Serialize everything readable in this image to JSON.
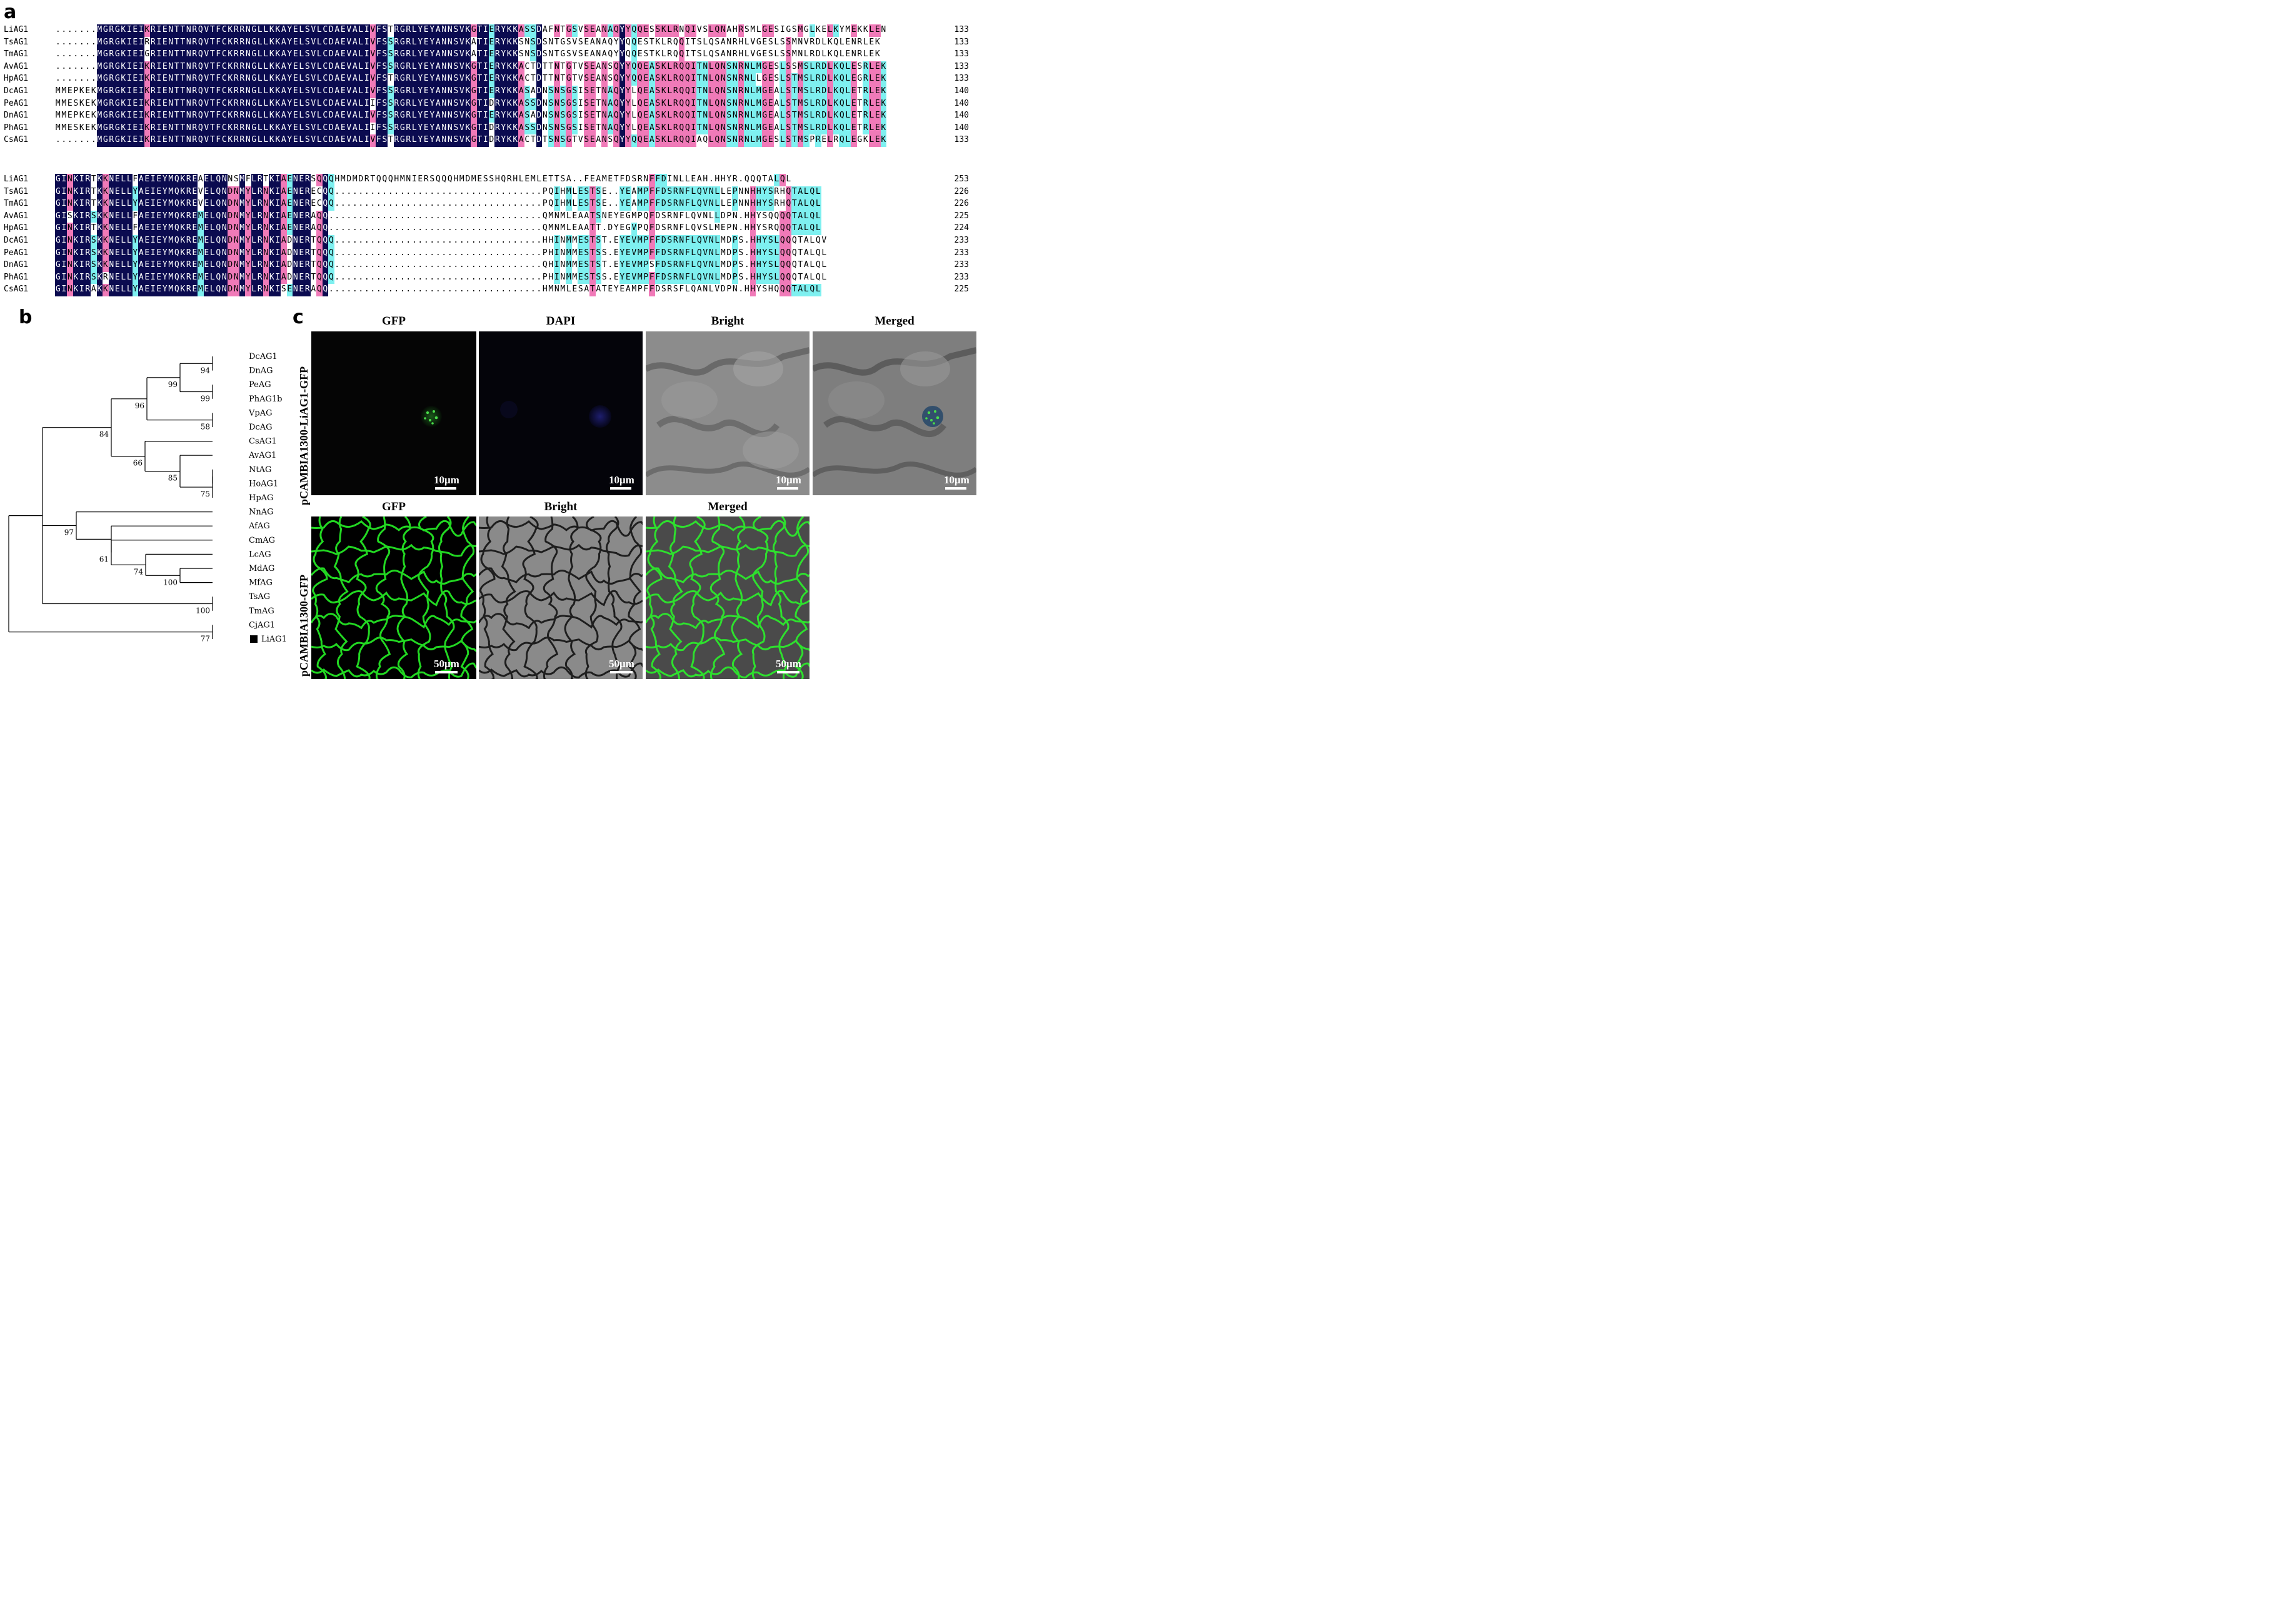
{
  "panels": {
    "a": "a",
    "b": "b",
    "c": "c"
  },
  "alignment": {
    "blocks": [
      {
        "rows": [
          {
            "name": "LiAG1",
            "seq": ".......MGRGKIEIKRIENTTNRQVTFCKRRNGLLKKAYELSVLCDAEVALIVFSTRGRLYEYANNSVKGTIERYKKASSDAFNTGSVSEANAQYYQQESSKLRNQIVSLQNAHRSMLGESIGSMGLKELKYMEKKLEN",
            "count": "133"
          },
          {
            "name": "TsAG1",
            "seq": ".......MGRGKIEIRRIENTTNRQVTFCKRRNGLLKKAYELSVLCDAEVALIVFSSRGRLYEYANNSVKATIERYKKSNSDSNTGSVSEANAQYYQQESTKLRQQITSLQSANRHLVGESLSSMNVRDLKQLENRLEK",
            "count": "133"
          },
          {
            "name": "TmAG1",
            "seq": ".......MGRGKIEIGRIENTTNRQVTFCKRRNGLLKKAYELSVLCDAEVALIVFSSRGRLYEYANNSVKATIERYKKSNSDSNTGSVSEANAQYYQQESTKLRQQITSLQSANRHLVGESLSSMNLRDLKQLENRLEK",
            "count": "133"
          },
          {
            "name": "AvAG1",
            "seq": ".......MGRGKIEIKRIENTTNRQVTFCKRRNGLLKKAYELSVLCDAEVALIVFSSRGRLYEYANNSVKGTIERYKKACTDTTNTGTVSEANSQYYQQEASKLRQQITNLQNSNRNLMGESLSSMSLRDLKQLESRLEK",
            "count": "133"
          },
          {
            "name": "HpAG1",
            "seq": ".......MGRGKIEIKRIENTTNRQVTFCKRRNGLLKKAYELSVLCDAEVALIVFSTRGRLYEYANNSVKGTIERYKKACTDTTNTGTVSEANSQYYQQEASKLRQQITNLQNSNRNLLGESLSTMSLRDLKQLEGRLEK",
            "count": "133"
          },
          {
            "name": "DcAG1",
            "seq": "MMEPKEKMGRGKIEIKRIENTTNRQVTFCKRRNGLLKKAYELSVLCDAEVALIVFSSRGRLYEYANNSVKGTIERYKKASADNSNSGSISETNAQYYLQEASKLRQQITNLQNSNRNLMGEALSTMSLRDLKQLETRLEK",
            "count": "140"
          },
          {
            "name": "PeAG1",
            "seq": "MMESKEKMGRGKIEIKRIENTTNRQVTFCKRRNGLLKKAYELSVLCDAEVALIIFSSRGRLYEYANNSVKGTIDRYKKASSDNSNSGSISETNAQYYLQEASKLRQQITNLQNSNRNLMGEALSTMSLRDLKQLETRLEK",
            "count": "140"
          },
          {
            "name": "DnAG1",
            "seq": "MMEPKEKMGRGKIEIKRIENTTNRQVTFCKRRNGLLKKAYELSVLCDAEVALIVFSSRGRLYEYANNSVKGTIERYKKASADNSNSGSISETNAQYYLQEASKLRQQITNLQNSNRNLMGEALSTMSLRDLKQLETRLEK",
            "count": "140"
          },
          {
            "name": "PhAG1",
            "seq": "MMESKEKMGRGKIEIKRIENTTNRQVTFCKRRNGLLKKAYELSVLCDAEVALIIFSSRGRLYEYANNSVKGTIDRYKKASSDNSNSGSISETNAQYYLQEASKLRQQITNLQNSNRNLMGEALSTMSLRDLKQLETRLEK",
            "count": "140"
          },
          {
            "name": "CsAG1",
            "seq": ".......MGRGKIEIKRIENTTNRQVTFCKRRNGLLKKAYELSVLCDAEVALIVFSTRGRLYEYANNSVKGTIDRYKKACTDTSNSGTVSEANSQYYQQEASKLRQQIAQLQNSNRNLMGESLSTMSPRELRQLEGKLEK",
            "count": "133"
          }
        ]
      },
      {
        "rows": [
          {
            "name": "LiAG1",
            "seq": "GINKIRTKKNELLFAEIEYMQKREAELQNNSMFLRTKIAENERSQQQHMDMDRTQQQHMNIERSQQQHMDMESSHQRHLEMLETTSA..FEAMETFDSRNFFDINLLEAH.HHYR.QQQTALQL",
            "count": "253"
          },
          {
            "name": "TsAG1",
            "seq": "GINKIRTKKNELLYAEIEYMQKREVELQNDNMYLRNKIAENERECQQ...................................PQIHMLESTSE..YEAMPFFDSRNFLQVNLLEPNNHHYSRHQTALQL",
            "count": "226"
          },
          {
            "name": "TmAG1",
            "seq": "GINKIRTKKNELLYAEIEYMQKREVELQNDNMYLRNKIAENERECQQ...................................PQIHMLESTSE..YEAMPFFDSRNFLQVNLLEPNNHHYSRHQTALQL",
            "count": "226"
          },
          {
            "name": "AvAG1",
            "seq": "GISKIRSKKNELLFAEIEYMQKREMELQNDNMYLRNKIAENERAQQ....................................QMNMLEAATSNEYEGMPQFDSRNFLQVNLLDPN.HHYSQQQQTALQL",
            "count": "225"
          },
          {
            "name": "HpAG1",
            "seq": "GINKIRTKKNELLFAEIEYMQKREMELQNDNMYLRNKIAENERAQQ....................................QMNMLEAATT.DYEGVPQFDSRNFLQVSLMEPN.HHYSRQQQTALQL",
            "count": "224"
          },
          {
            "name": "DcAG1",
            "seq": "GINKIRSKKNELLYAEIEYMQKREMELQNDNMYLRNKIADNERTQQQ...................................HHINMMESTST.EYEVMPFFDSRNFLQVNLMDPS.HHYSLQQQTALQV",
            "count": "233"
          },
          {
            "name": "PeAG1",
            "seq": "GINKIRSKKNELLYAEIEYMQKREMELQNDNMYLRNKIADNERTQQQ...................................PHINMMESTSS.EYEVMPFFDSRNFLQVNLMDPS.HHYSLQQQTALQL",
            "count": "233"
          },
          {
            "name": "DnAG1",
            "seq": "GINKIRSKKNELLYAEIEYMQKREMELQNDNMYLRNKIADNERTQQQ...................................QHINMMESTST.EYEVMPSFDSRNFLQVNLMDPS.HHYSLQQQTALQL",
            "count": "233"
          },
          {
            "name": "PhAG1",
            "seq": "GINKIRSKRNELLYAEIEYMQKREMELQNDNMYLRNKIADNERTQQQ...................................PHINMMESTSS.EYEVMPFFDSRNFLQVNLMDPS.HHYSLQQQTALQL",
            "count": "233"
          },
          {
            "name": "CsAG1",
            "seq": "GINKIRAKKNELLYAEIEYMQKREMELQNDNMYLRNKISENERAQQ....................................HMNMLESATATEYEAMPFFDSRSFLQANLVDPN.HHYSHQQQTALQL",
            "count": "225"
          }
        ]
      }
    ],
    "colors": {
      "identical": "#0b0b50",
      "high": "#f07ab8",
      "partial": "#7ef0f0"
    }
  },
  "tree": {
    "leaves": [
      "DcAG1",
      "DnAG",
      "PeAG",
      "PhAG1b",
      "VpAG",
      "DcAG",
      "CsAG1",
      "AvAG1",
      "NtAG",
      "HoAG1",
      "HpAG",
      "NnAG",
      "AfAG",
      "CmAG",
      "LcAG",
      "MdAG",
      "MfAG",
      "TsAG",
      "TmAG",
      "CjAG1",
      "LiAG1"
    ],
    "bootstrap": {
      "n_dc_dn": "94",
      "n_pe_ph": "99",
      "n_dcdn_peph": "99",
      "n_vp_dc": "58",
      "n_group1": "96",
      "n_ntho_hp": "75",
      "n_nthohp": "85",
      "n_cs_av": "66",
      "n_core": "84",
      "n_md_mf": "100",
      "n_lc": "74",
      "n_cm": "61",
      "n_nn": "97",
      "n_ts_tm": "100",
      "n_cj_li": "77"
    },
    "highlight_leaf": "LiAG1",
    "highlight_marker": "filled-square"
  },
  "microscopy": {
    "row1": {
      "construct": "pCAMBIA1300-LiAG1-GFP",
      "columns": [
        "GFP",
        "DAPI",
        "Bright",
        "Merged"
      ],
      "scale_bar": "10μm"
    },
    "row2": {
      "construct": "pCAMBIA1300-GFP",
      "columns": [
        "GFP",
        "Bright",
        "Merged"
      ],
      "scale_bar": "50μm"
    }
  }
}
